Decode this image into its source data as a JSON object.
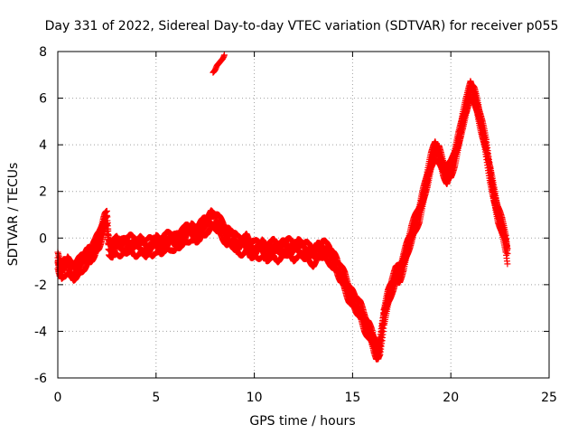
{
  "chart_data": {
    "type": "scatter",
    "title": "Day 331 of 2022, Sidereal Day-to-day VTEC variation (SDTVAR) for receiver p055",
    "xlabel": "GPS time / hours",
    "ylabel": "SDTVAR / TECUs",
    "xlim": [
      0,
      25
    ],
    "ylim": [
      -6,
      8
    ],
    "xticks": [
      0,
      5,
      10,
      15,
      20,
      25
    ],
    "yticks": [
      -6,
      -4,
      -2,
      0,
      2,
      4,
      6,
      8
    ],
    "xtick_labels": [
      "0",
      "5",
      "10",
      "15",
      "20",
      "25"
    ],
    "ytick_labels": [
      "-6",
      "-4",
      "-2",
      "0",
      "2",
      "4",
      "6",
      "8"
    ],
    "grid": true,
    "marker": "+",
    "color": "#ff0000",
    "series": [
      {
        "name": "SDTVAR",
        "x": [
          0.0,
          0.1,
          0.2,
          0.3,
          0.4,
          0.5,
          0.6,
          0.8,
          1.0,
          1.2,
          1.4,
          1.5,
          1.7,
          1.9,
          2.0,
          2.1,
          2.2,
          2.3,
          2.4,
          2.5,
          2.6,
          2.8,
          3.0,
          3.3,
          3.6,
          3.9,
          4.2,
          4.5,
          4.8,
          5.0,
          5.2,
          5.4,
          5.6,
          5.8,
          6.0,
          6.2,
          6.4,
          6.6,
          6.8,
          7.0,
          7.2,
          7.4,
          7.6,
          7.8,
          8.0,
          8.2,
          8.4,
          8.6,
          8.8,
          9.0,
          9.2,
          9.4,
          9.6,
          9.8,
          10.0,
          10.2,
          10.4,
          10.6,
          10.8,
          11.0,
          11.2,
          11.4,
          11.6,
          11.8,
          12.0,
          12.2,
          12.4,
          12.6,
          12.8,
          13.0,
          13.2,
          13.4,
          13.6,
          13.8,
          14.0,
          14.2,
          14.4,
          14.6,
          14.8,
          15.0,
          15.2,
          15.4,
          15.6,
          15.8,
          16.0,
          16.1,
          16.2,
          16.3,
          16.4,
          16.5,
          16.6,
          16.8,
          17.0,
          17.2,
          17.4,
          17.6,
          17.8,
          18.0,
          18.2,
          18.4,
          18.6,
          18.8,
          19.0,
          19.2,
          19.4,
          19.6,
          19.8,
          20.0,
          20.2,
          20.4,
          20.6,
          20.8,
          20.9,
          21.0,
          21.1,
          21.2,
          21.4,
          21.6,
          21.8,
          22.0,
          22.2,
          22.4,
          22.6,
          22.8,
          22.9
        ],
        "y": [
          -1.0,
          -1.4,
          -1.5,
          -1.3,
          -1.2,
          -1.1,
          -1.3,
          -1.5,
          -1.4,
          -1.1,
          -0.9,
          -0.8,
          -0.7,
          -0.5,
          -0.3,
          -0.1,
          0.2,
          0.5,
          0.7,
          0.8,
          -0.4,
          -0.6,
          -0.3,
          -0.4,
          -0.3,
          -0.4,
          -0.3,
          -0.5,
          -0.4,
          -0.2,
          -0.4,
          -0.3,
          -0.2,
          -0.1,
          -0.2,
          -0.1,
          0.0,
          0.2,
          0.3,
          0.1,
          0.2,
          0.4,
          0.6,
          0.8,
          0.7,
          0.5,
          0.3,
          0.1,
          0.0,
          -0.2,
          -0.4,
          -0.3,
          -0.2,
          -0.5,
          -0.6,
          -0.5,
          -0.4,
          -0.7,
          -0.6,
          -0.5,
          -0.6,
          -0.5,
          -0.4,
          -0.5,
          -0.6,
          -0.4,
          -0.5,
          -0.6,
          -0.7,
          -0.8,
          -0.6,
          -0.5,
          -0.6,
          -0.7,
          -0.9,
          -1.2,
          -1.6,
          -1.9,
          -2.3,
          -2.6,
          -2.9,
          -3.2,
          -3.6,
          -3.9,
          -4.3,
          -4.6,
          -4.9,
          -5.0,
          -4.7,
          -4.0,
          -3.3,
          -2.6,
          -2.1,
          -1.7,
          -1.5,
          -1.0,
          -0.4,
          0.1,
          0.6,
          1.1,
          1.8,
          2.5,
          3.2,
          3.8,
          3.6,
          3.0,
          2.6,
          2.9,
          3.5,
          4.2,
          5.0,
          5.6,
          6.0,
          6.4,
          6.3,
          6.1,
          5.4,
          4.6,
          3.8,
          2.8,
          1.8,
          1.0,
          0.4,
          -0.2,
          -0.8
        ],
        "offsets": [
          0.0,
          -0.25,
          0.2,
          -0.15,
          0.3
        ],
        "fragment": {
          "x": [
            7.9,
            8.0,
            8.1,
            8.2,
            8.3,
            8.4,
            8.5
          ],
          "y": [
            7.1,
            7.2,
            7.4,
            7.5,
            7.6,
            7.7,
            7.9
          ]
        }
      }
    ]
  }
}
